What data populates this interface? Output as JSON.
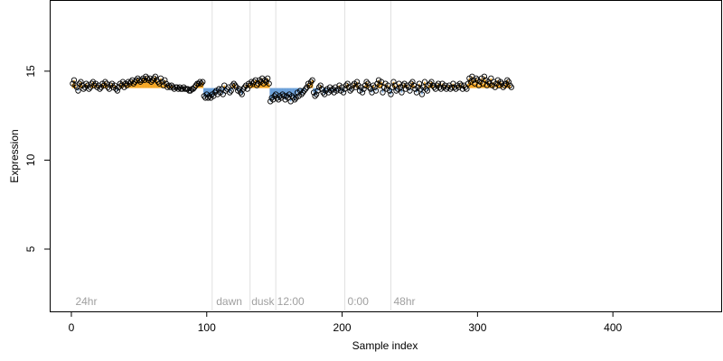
{
  "chart_data": {
    "type": "scatter",
    "title": "",
    "xlabel": "Sample index",
    "ylabel": "Expression",
    "xlim": [
      -16,
      480
    ],
    "ylim": [
      1.5,
      19
    ],
    "x_ticks": [
      0,
      100,
      200,
      300,
      400
    ],
    "y_ticks": [
      5,
      10,
      15
    ],
    "grid": false,
    "baseline": 14.05,
    "colors": {
      "above": "#f5a623",
      "below": "#6a9fd8",
      "points": "#000000",
      "divider": "#e0e0e0",
      "region_label": "#a0a0a0"
    },
    "dividers": [
      104,
      132,
      151,
      202,
      236
    ],
    "region_labels": [
      {
        "x": 3,
        "text": "24hr"
      },
      {
        "x": 107,
        "text": "dawn"
      },
      {
        "x": 133,
        "text": "dusk"
      },
      {
        "x": 152,
        "text": "12:00"
      },
      {
        "x": 204,
        "text": "0:00"
      },
      {
        "x": 238,
        "text": "48hr"
      }
    ],
    "series": [
      {
        "y": [
          14.3,
          14.5,
          14.2,
          14.1,
          13.9,
          14.3,
          14.4,
          14.2,
          14.0,
          14.1,
          14.3,
          14.2,
          14.0,
          14.1,
          14.3,
          14.4,
          14.2,
          14.3,
          14.1,
          14.2,
          14.0,
          14.1,
          14.3,
          14.2,
          14.4,
          14.3,
          14.1,
          14.0,
          14.2,
          14.3,
          14.1,
          14.2,
          14.0,
          13.9,
          14.1,
          14.3,
          14.2,
          14.4,
          14.1,
          14.3,
          14.2,
          14.4,
          14.3,
          14.4,
          14.5,
          14.3,
          14.4,
          14.5,
          14.6,
          14.5,
          14.4,
          14.5,
          14.6,
          14.5,
          14.7,
          14.6,
          14.5,
          14.6,
          14.4,
          14.5,
          14.6,
          14.7,
          14.5,
          14.4,
          14.3,
          14.6,
          14.4,
          14.2,
          14.5,
          14.3,
          14.1,
          14.2,
          14.1,
          14.2,
          14.1,
          14.0,
          14.1,
          14.1,
          14.0,
          14.1,
          14.0,
          14.0,
          14.1,
          14.0,
          14.0,
          14.0,
          13.9,
          13.9,
          14.0,
          14.0,
          14.1,
          14.2,
          14.3,
          14.3,
          14.4,
          14.3,
          14.4,
          13.6,
          13.5,
          13.7,
          13.5,
          13.6,
          13.5,
          13.7,
          13.6,
          13.8,
          13.9,
          13.7,
          14.0,
          13.8,
          14.0,
          13.7,
          14.2,
          13.9,
          14.0,
          14.1,
          13.8,
          13.9,
          14.2,
          14.3,
          14.2,
          14.1,
          13.9,
          14.0,
          13.8,
          13.7,
          14.0,
          14.1,
          14.2,
          14.0,
          14.3,
          14.2,
          14.4,
          14.3,
          14.4,
          14.5,
          14.2,
          14.3,
          14.5,
          14.4,
          14.6,
          14.3,
          14.5,
          14.4,
          14.6,
          14.3,
          13.3,
          13.5,
          13.4,
          13.6,
          13.7,
          13.5,
          13.4,
          13.6,
          13.5,
          13.7,
          13.6,
          13.4,
          13.6,
          13.5,
          13.7,
          13.3,
          13.6,
          13.5,
          13.4,
          13.5,
          13.8,
          13.6,
          13.9,
          13.7,
          13.8,
          13.9,
          14.0,
          14.1,
          14.3,
          14.2,
          14.4,
          14.5,
          13.8,
          13.6,
          13.7,
          13.9,
          14.1,
          14.2,
          14.0,
          13.8,
          13.7,
          13.9,
          14.0,
          13.8,
          14.1,
          13.9,
          14.0,
          13.8,
          14.1,
          13.9,
          14.0,
          14.2,
          13.9,
          14.1,
          13.8,
          14.0,
          14.2,
          14.3,
          14.1,
          13.9,
          14.0,
          14.2,
          14.3,
          14.1,
          14.4,
          14.2,
          13.9,
          14.1,
          13.8,
          14.0,
          14.2,
          14.4,
          14.3,
          14.1,
          14.0,
          13.8,
          14.2,
          14.1,
          13.9,
          14.3,
          14.5,
          14.2,
          14.4,
          13.8,
          14.1,
          14.3,
          14.0,
          14.2,
          13.9,
          13.7,
          14.1,
          14.4,
          14.2,
          13.9,
          14.0,
          14.3,
          14.1,
          13.8,
          14.2,
          14.3,
          14.0,
          14.2,
          14.1,
          13.9,
          14.3,
          14.4,
          14.2,
          14.0,
          13.8,
          14.1,
          14.3,
          14.0,
          13.7,
          14.1,
          14.4,
          14.0,
          13.9,
          14.2,
          14.3,
          14.4,
          14.2,
          14.1,
          14.0,
          14.2,
          14.3,
          14.1,
          14.0,
          14.3,
          14.1,
          14.2,
          14.0,
          14.1,
          14.2,
          14.0,
          14.1,
          14.3,
          14.1,
          14.0,
          14.2,
          14.1,
          14.3,
          14.2,
          14.0,
          14.2,
          14.1,
          14.0,
          14.3,
          14.6,
          14.4,
          14.7,
          14.5,
          14.3,
          14.6,
          14.5,
          14.2,
          14.4,
          14.6,
          14.3,
          14.7,
          14.5,
          14.2,
          14.4,
          14.3,
          14.6,
          14.2,
          14.4,
          14.1,
          14.3,
          14.5,
          14.2,
          14.4,
          14.3,
          14.1,
          14.2,
          14.3,
          14.5,
          14.4,
          14.2,
          14.1
        ]
      }
    ]
  }
}
